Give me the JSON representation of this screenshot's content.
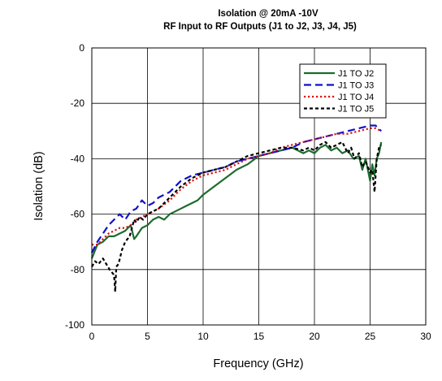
{
  "chart_data": {
    "type": "line",
    "title": "Isolation @ 20mA -10V",
    "subtitle": "RF Input to RF Outputs (J1 to J2, J3, J4, J5)",
    "xlabel": "Frequency (GHz)",
    "ylabel": "Isolation (dB)",
    "xlim": [
      0,
      30
    ],
    "ylim": [
      -100,
      0
    ],
    "xticks": [
      0,
      5,
      10,
      15,
      20,
      25,
      30
    ],
    "yticks": [
      0,
      -20,
      -40,
      -60,
      -80,
      -100
    ],
    "grid": true,
    "legend_position": "top-right",
    "series": [
      {
        "name": "J1 TO J2",
        "color": "#1e6b2e",
        "dash": "solid",
        "x": [
          0,
          0.5,
          1,
          1.5,
          2,
          2.5,
          3,
          3.5,
          3.8,
          4,
          4.5,
          5,
          5.5,
          6,
          6.5,
          7,
          7.5,
          8,
          8.5,
          9,
          9.5,
          10,
          11,
          12,
          13,
          14,
          15,
          16,
          17,
          18,
          18.5,
          19,
          19.5,
          20,
          20.5,
          21,
          21.5,
          22,
          22.5,
          23,
          23.5,
          24,
          24.3,
          24.6,
          25,
          25.2,
          25.4,
          25.6,
          25.8,
          26
        ],
        "y": [
          -76,
          -71,
          -70,
          -68,
          -68,
          -67,
          -66,
          -64,
          -69,
          -68,
          -65,
          -64,
          -62,
          -61,
          -62,
          -60,
          -59,
          -58,
          -57,
          -56,
          -55,
          -53,
          -50,
          -47,
          -44,
          -42,
          -39,
          -38,
          -37,
          -36,
          -37,
          -38,
          -37,
          -38,
          -36,
          -35,
          -37,
          -36,
          -38,
          -37,
          -40,
          -39,
          -44,
          -40,
          -48,
          -42,
          -46,
          -40,
          -38,
          -34
        ]
      },
      {
        "name": "J1 TO J3",
        "color": "#1010cc",
        "dash": "long",
        "x": [
          0,
          0.5,
          1,
          1.5,
          2,
          2.5,
          3,
          3.5,
          4,
          4.5,
          5,
          5.5,
          6,
          7,
          8,
          9,
          10,
          11,
          12,
          13,
          14,
          15,
          16,
          17,
          18,
          19,
          20,
          21,
          22,
          23,
          24,
          25,
          25.5,
          26
        ],
        "y": [
          -74,
          -70,
          -67,
          -64,
          -62,
          -60,
          -62,
          -59,
          -58,
          -55,
          -57,
          -56,
          -54,
          -52,
          -48,
          -46,
          -45,
          -44,
          -43,
          -41,
          -40,
          -39,
          -38,
          -37,
          -36,
          -34,
          -33,
          -32,
          -31,
          -30,
          -29,
          -28,
          -28,
          -30
        ]
      },
      {
        "name": "J1 TO J4",
        "color": "#dd1111",
        "dash": "dot",
        "x": [
          0,
          0.5,
          1,
          1.5,
          2,
          2.5,
          3,
          3.5,
          4,
          4.5,
          5,
          5.5,
          6,
          7,
          8,
          9,
          10,
          11,
          12,
          13,
          14,
          15,
          16,
          17,
          18,
          19,
          20,
          21,
          22,
          23,
          24,
          25,
          25.5,
          26
        ],
        "y": [
          -71,
          -71,
          -69,
          -67,
          -66,
          -65,
          -65,
          -64,
          -62,
          -61,
          -60,
          -59,
          -58,
          -55,
          -51,
          -48,
          -46,
          -45,
          -44,
          -42,
          -40,
          -39,
          -38,
          -36,
          -35,
          -34,
          -33,
          -32,
          -31,
          -31,
          -30,
          -29,
          -29,
          -30
        ]
      },
      {
        "name": "J1 TO J5",
        "color": "#000000",
        "dash": "dash",
        "x": [
          0,
          0.3,
          0.6,
          1,
          1.3,
          1.6,
          2,
          2.1,
          2.2,
          2.4,
          2.7,
          3,
          3.4,
          3.8,
          4,
          4.3,
          4.6,
          5,
          5.5,
          6,
          7,
          8,
          9,
          10,
          11,
          12,
          13,
          14,
          15,
          16,
          17,
          18,
          19,
          19.5,
          20,
          20.5,
          21,
          21.5,
          22,
          22.5,
          23,
          23.3,
          23.6,
          24,
          24.3,
          24.6,
          25,
          25.2,
          25.4,
          25.5,
          25.6,
          25.8,
          26
        ],
        "y": [
          -79,
          -77,
          -78,
          -76,
          -78,
          -80,
          -82,
          -88,
          -79,
          -78,
          -73,
          -70,
          -68,
          -62,
          -63,
          -61,
          -62,
          -60,
          -59,
          -58,
          -54,
          -50,
          -47,
          -45,
          -44,
          -43,
          -41,
          -39,
          -38,
          -37,
          -36,
          -36,
          -37,
          -36,
          -37,
          -35,
          -34,
          -36,
          -35,
          -34,
          -38,
          -36,
          -40,
          -38,
          -43,
          -41,
          -45,
          -44,
          -52,
          -46,
          -40,
          -36,
          -35
        ]
      }
    ]
  }
}
